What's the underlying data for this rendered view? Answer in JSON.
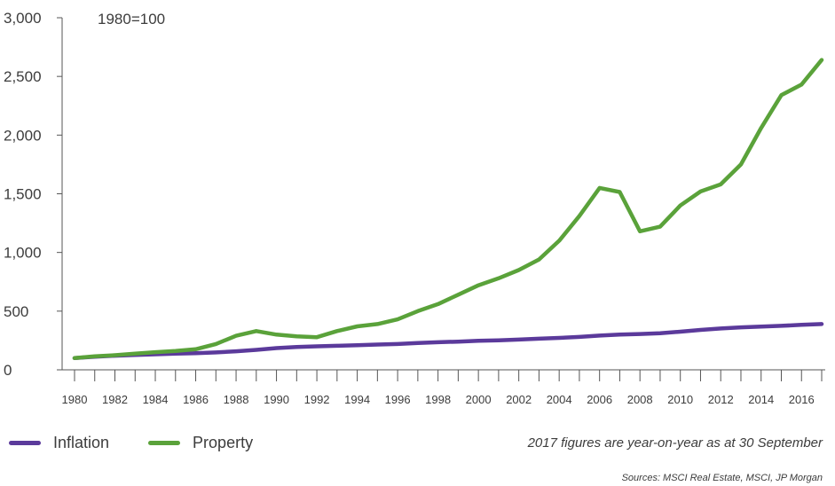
{
  "chart_data": {
    "type": "line",
    "title": "",
    "annotation": "1980=100",
    "xlabel": "",
    "ylabel": "",
    "ylim": [
      0,
      3000
    ],
    "y_ticks": [
      0,
      500,
      1000,
      1500,
      2000,
      2500,
      3000
    ],
    "y_tick_labels": [
      "0",
      "500",
      "1,000",
      "1,500",
      "2,000",
      "2,500",
      "3,000"
    ],
    "x_tick_labels": [
      "1980",
      "1982",
      "1984",
      "1986",
      "1988",
      "1990",
      "1992",
      "1994",
      "1996",
      "1998",
      "2000",
      "2002",
      "2004",
      "2006",
      "2008",
      "2010",
      "2012",
      "2014",
      "2016"
    ],
    "grid": false,
    "legend_position": "bottom-left",
    "x": [
      1980,
      1981,
      1982,
      1983,
      1984,
      1985,
      1986,
      1987,
      1988,
      1989,
      1990,
      1991,
      1992,
      1993,
      1994,
      1995,
      1996,
      1997,
      1998,
      1999,
      2000,
      2001,
      2002,
      2003,
      2004,
      2005,
      2006,
      2007,
      2008,
      2009,
      2010,
      2011,
      2012,
      2013,
      2014,
      2015,
      2016,
      2017
    ],
    "series": [
      {
        "name": "Inflation",
        "color": "#5b3a9b",
        "values": [
          100,
          112,
          120,
          127,
          132,
          138,
          142,
          148,
          158,
          170,
          185,
          195,
          200,
          205,
          210,
          215,
          220,
          228,
          235,
          240,
          248,
          252,
          258,
          265,
          272,
          280,
          292,
          300,
          305,
          312,
          325,
          340,
          352,
          362,
          368,
          375,
          383,
          390
        ]
      },
      {
        "name": "Property",
        "color": "#5aa23a",
        "values": [
          100,
          115,
          125,
          138,
          150,
          160,
          175,
          220,
          290,
          330,
          300,
          285,
          278,
          330,
          370,
          390,
          430,
          500,
          560,
          640,
          720,
          780,
          850,
          940,
          1100,
          1310,
          1550,
          1515,
          1180,
          1220,
          1400,
          1520,
          1580,
          1750,
          2060,
          2340,
          2430,
          2640
        ]
      }
    ]
  },
  "footer": {
    "note": "2017 figures are year-on-year as at 30 September",
    "source": "Sources: MSCI Real Estate, MSCI, JP Morgan"
  }
}
